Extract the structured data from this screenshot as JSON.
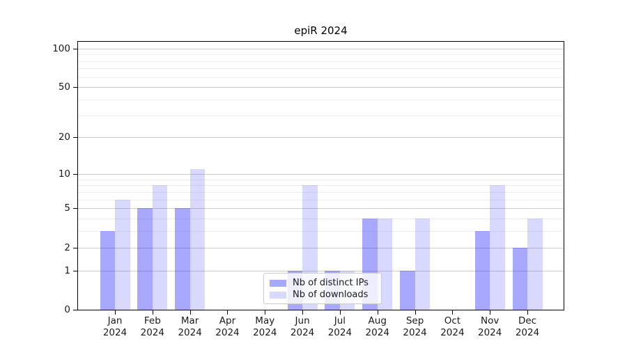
{
  "chart_data": {
    "type": "bar",
    "title": "epiR 2024",
    "categories": [
      "Jan 2024",
      "Feb 2024",
      "Mar 2024",
      "Apr 2024",
      "May 2024",
      "Jun 2024",
      "Jul 2024",
      "Aug 2024",
      "Sep 2024",
      "Oct 2024",
      "Nov 2024",
      "Dec 2024"
    ],
    "series": [
      {
        "name": "Nb of distinct IPs",
        "color": "#0000ff57",
        "values": [
          3,
          5,
          5,
          0,
          0,
          1,
          1,
          4,
          1,
          0,
          3,
          2
        ]
      },
      {
        "name": "Nb of downloads",
        "color": "#0000ff26",
        "values": [
          6,
          8,
          11,
          0,
          0,
          8,
          1,
          4,
          4,
          0,
          8,
          4
        ]
      }
    ],
    "xlabel": "",
    "ylabel": "",
    "yscale": "log1p",
    "ylim": [
      0,
      113
    ],
    "yticks": [
      0,
      1,
      2,
      5,
      10,
      20,
      50,
      100
    ],
    "minor_yticks": [
      3,
      4,
      6,
      7,
      8,
      9,
      30,
      40,
      60,
      70,
      80,
      90
    ],
    "grid": true,
    "legend_position": "inside-bottom-center",
    "colors": {
      "major_grid": "#cfcfcf",
      "minor_grid": "#f0f0f0",
      "axis": "#000000",
      "text": "#1a1a1a"
    }
  }
}
